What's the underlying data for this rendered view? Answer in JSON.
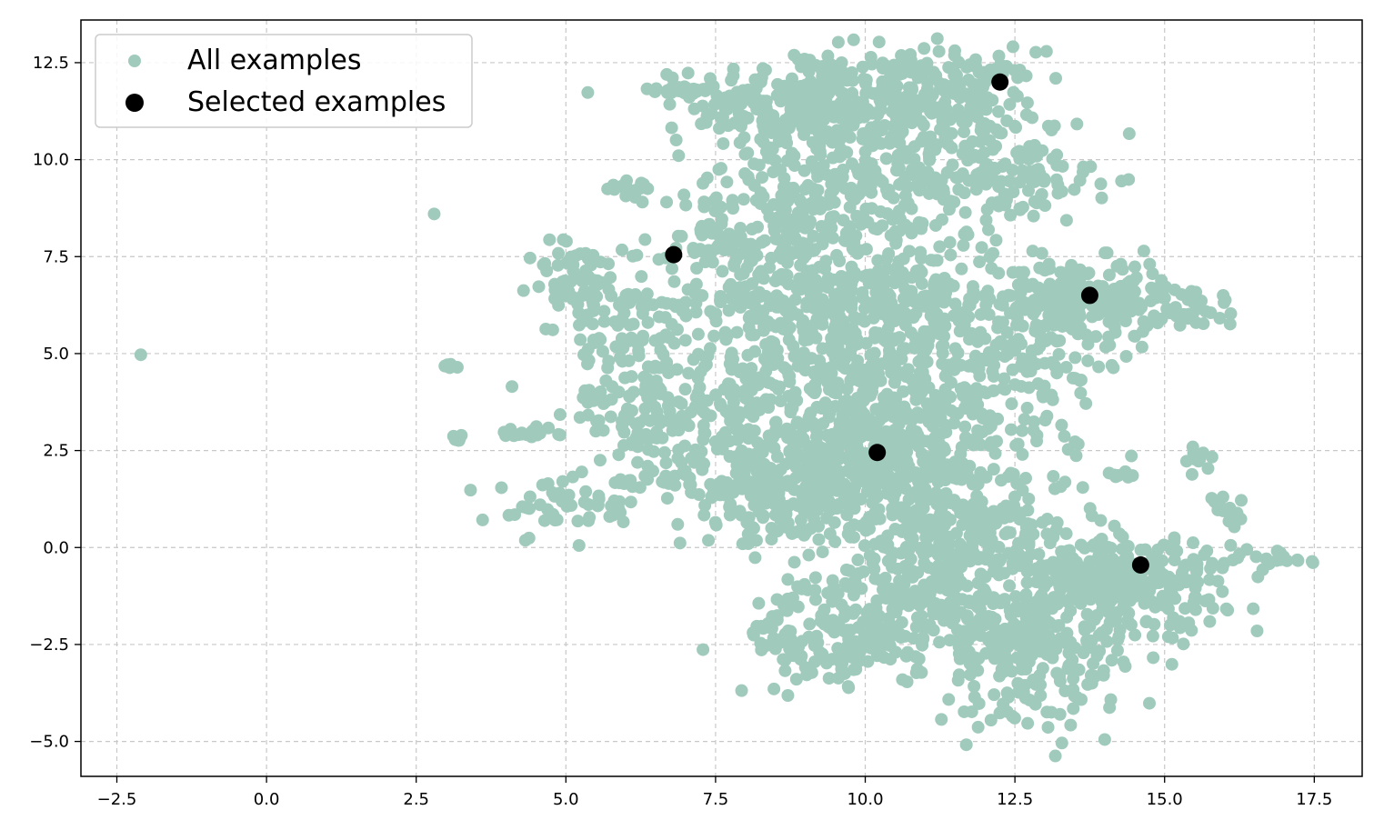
{
  "chart_data": {
    "type": "scatter",
    "title": "",
    "xlabel": "",
    "ylabel": "",
    "xlim": [
      -3.1,
      18.3
    ],
    "ylim": [
      -5.9,
      13.6
    ],
    "xticks": [
      -2.5,
      0.0,
      2.5,
      5.0,
      7.5,
      10.0,
      12.5,
      15.0,
      17.5
    ],
    "xtick_labels": [
      "−2.5",
      "0.0",
      "2.5",
      "5.0",
      "7.5",
      "10.0",
      "12.5",
      "15.0",
      "17.5"
    ],
    "yticks": [
      -5.0,
      -2.5,
      0.0,
      2.5,
      5.0,
      7.5,
      10.0,
      12.5
    ],
    "ytick_labels": [
      "−5.0",
      "−2.5",
      "0.0",
      "2.5",
      "5.0",
      "7.5",
      "10.0",
      "12.5"
    ],
    "grid": true,
    "legend": {
      "placement": "upper-left"
    },
    "series": [
      {
        "name": "All examples",
        "color": "#a0cbbc",
        "clusters": [
          {
            "cx": 7.0,
            "cy": 11.8,
            "sx": 0.35,
            "sy": 0.06,
            "n": 40
          },
          {
            "cx": 9.0,
            "cy": 11.4,
            "sx": 0.9,
            "sy": 0.7,
            "n": 260
          },
          {
            "cx": 11.3,
            "cy": 11.6,
            "sx": 0.8,
            "sy": 0.6,
            "n": 200
          },
          {
            "cx": 10.2,
            "cy": 9.6,
            "sx": 1.4,
            "sy": 0.8,
            "n": 260
          },
          {
            "cx": 12.6,
            "cy": 9.4,
            "sx": 0.6,
            "sy": 0.6,
            "n": 70
          },
          {
            "cx": 6.0,
            "cy": 9.3,
            "sx": 0.3,
            "sy": 0.15,
            "n": 20
          },
          {
            "cx": 8.8,
            "cy": 8.3,
            "sx": 0.8,
            "sy": 0.6,
            "n": 110
          },
          {
            "cx": 7.5,
            "cy": 7.6,
            "sx": 0.5,
            "sy": 0.3,
            "n": 40
          },
          {
            "cx": 5.2,
            "cy": 6.9,
            "sx": 0.4,
            "sy": 0.5,
            "n": 60
          },
          {
            "cx": 6.0,
            "cy": 5.7,
            "sx": 0.5,
            "sy": 0.5,
            "n": 60
          },
          {
            "cx": 8.6,
            "cy": 6.3,
            "sx": 1.0,
            "sy": 0.7,
            "n": 220
          },
          {
            "cx": 10.8,
            "cy": 6.6,
            "sx": 0.8,
            "sy": 0.7,
            "n": 180
          },
          {
            "cx": 13.6,
            "cy": 6.4,
            "sx": 0.7,
            "sy": 0.5,
            "n": 220
          },
          {
            "cx": 15.4,
            "cy": 6.2,
            "sx": 0.4,
            "sy": 0.3,
            "n": 35
          },
          {
            "cx": 12.6,
            "cy": 5.0,
            "sx": 0.7,
            "sy": 0.6,
            "n": 60
          },
          {
            "cx": 10.2,
            "cy": 4.4,
            "sx": 1.5,
            "sy": 0.9,
            "n": 320
          },
          {
            "cx": 6.3,
            "cy": 3.7,
            "sx": 0.6,
            "sy": 0.7,
            "n": 90
          },
          {
            "cx": 7.6,
            "cy": 3.4,
            "sx": 0.6,
            "sy": 0.8,
            "n": 80
          },
          {
            "cx": 4.3,
            "cy": 2.95,
            "sx": 0.3,
            "sy": 0.06,
            "n": 20
          },
          {
            "cx": 3.2,
            "cy": 2.8,
            "sx": 0.06,
            "sy": 0.06,
            "n": 8
          },
          {
            "cx": 3.05,
            "cy": 4.65,
            "sx": 0.06,
            "sy": 0.04,
            "n": 6
          },
          {
            "cx": 10.2,
            "cy": 2.2,
            "sx": 1.4,
            "sy": 0.9,
            "n": 520
          },
          {
            "cx": 8.3,
            "cy": 1.2,
            "sx": 0.7,
            "sy": 0.6,
            "n": 120
          },
          {
            "cx": 5.0,
            "cy": 1.1,
            "sx": 0.6,
            "sy": 0.4,
            "n": 50
          },
          {
            "cx": 6.6,
            "cy": 1.7,
            "sx": 0.4,
            "sy": 0.15,
            "n": 20
          },
          {
            "cx": 11.5,
            "cy": 0.3,
            "sx": 1.0,
            "sy": 0.6,
            "n": 220
          },
          {
            "cx": 14.2,
            "cy": -0.9,
            "sx": 0.9,
            "sy": 0.6,
            "n": 300
          },
          {
            "cx": 16.8,
            "cy": -0.3,
            "sx": 0.4,
            "sy": 0.15,
            "n": 20
          },
          {
            "cx": 16.1,
            "cy": 1.0,
            "sx": 0.15,
            "sy": 0.3,
            "n": 15
          },
          {
            "cx": 15.6,
            "cy": 2.3,
            "sx": 0.1,
            "sy": 0.15,
            "n": 10
          },
          {
            "cx": 10.9,
            "cy": -1.6,
            "sx": 1.0,
            "sy": 0.7,
            "n": 220
          },
          {
            "cx": 12.7,
            "cy": -2.8,
            "sx": 0.8,
            "sy": 0.9,
            "n": 220
          },
          {
            "cx": 9.5,
            "cy": -2.7,
            "sx": 0.6,
            "sy": 0.5,
            "n": 80
          },
          {
            "cx": 8.5,
            "cy": -2.0,
            "sx": 0.3,
            "sy": 0.4,
            "n": 25
          },
          {
            "cx": 14.3,
            "cy": 1.9,
            "sx": 0.15,
            "sy": 0.06,
            "n": 8
          }
        ],
        "points": [
          [
            -2.1,
            4.97
          ],
          [
            2.8,
            8.6
          ],
          [
            4.1,
            4.15
          ],
          [
            12.1,
            -4.45
          ],
          [
            14.0,
            -4.95
          ],
          [
            6.2,
            2.6
          ],
          [
            5.5,
            3.0
          ],
          [
            12.5,
            4.2
          ]
        ]
      },
      {
        "name": "Selected examples",
        "color": "#000000",
        "points": [
          [
            12.25,
            12.0
          ],
          [
            6.8,
            7.55
          ],
          [
            13.75,
            6.5
          ],
          [
            10.2,
            2.45
          ],
          [
            14.6,
            -0.45
          ]
        ]
      }
    ]
  }
}
